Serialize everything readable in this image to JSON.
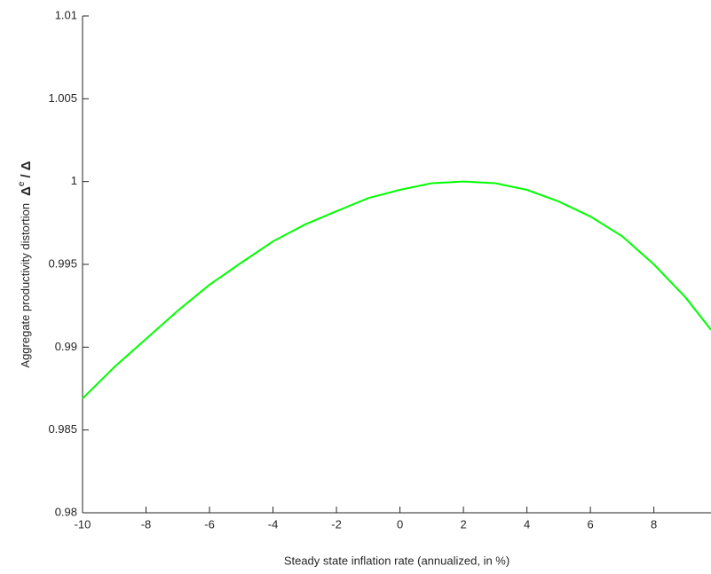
{
  "chart_data": {
    "type": "line",
    "xlabel": "Steady state inflation rate (annualized, in %)",
    "ylabel_parts": [
      "Aggregate productivity distortion",
      "Δ",
      "e",
      "/ Δ"
    ],
    "x": [
      -10,
      -9,
      -8,
      -7,
      -6,
      -5,
      -4,
      -3,
      -2,
      -1,
      0,
      1,
      2,
      3,
      4,
      5,
      6,
      7,
      8,
      9,
      9.8
    ],
    "series": [
      {
        "color": "#00ff00",
        "values": [
          0.9869,
          0.9888,
          0.9905,
          0.9922,
          0.99377,
          0.9951,
          0.99639,
          0.9974,
          0.99821,
          0.999,
          0.9995,
          0.9999,
          1.0,
          0.9999,
          0.9995,
          0.9988,
          0.99789,
          0.9967,
          0.995,
          0.993,
          0.99104
        ]
      }
    ],
    "xlim": [
      -10,
      9.8
    ],
    "ylim": [
      0.98,
      1.01
    ],
    "xticks": [
      -10,
      -8,
      -6,
      -4,
      -2,
      0,
      2,
      4,
      6,
      8
    ],
    "yticks": [
      0.98,
      0.985,
      0.99,
      0.995,
      1,
      1.005,
      1.01
    ]
  }
}
